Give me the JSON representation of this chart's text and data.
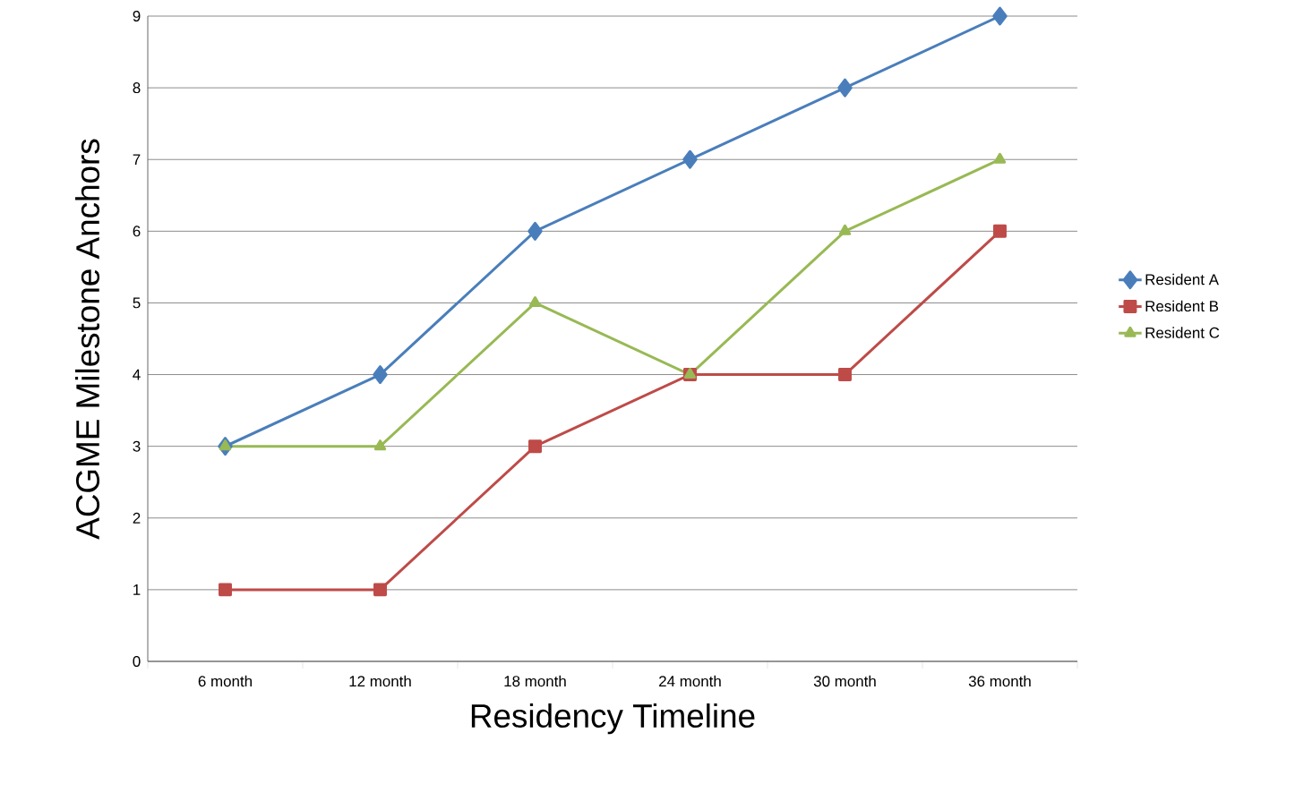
{
  "chart_data": {
    "type": "line",
    "xlabel": "Residency Timeline",
    "ylabel": "ACGME Milestone Anchors",
    "categories": [
      "6 month",
      "12 month",
      "18 month",
      "24 month",
      "30 month",
      "36 month"
    ],
    "series": [
      {
        "name": "Resident A",
        "color": "#4a7ebb",
        "marker": "diamond",
        "values": [
          3,
          4,
          6,
          7,
          8,
          9
        ]
      },
      {
        "name": "Resident B",
        "color": "#be4b48",
        "marker": "square",
        "values": [
          1,
          1,
          3,
          4,
          4,
          6
        ]
      },
      {
        "name": "Resident C",
        "color": "#98b954",
        "marker": "triangle",
        "values": [
          3,
          3,
          5,
          4,
          6,
          7
        ]
      }
    ],
    "ylim": [
      0,
      9
    ],
    "yticks": [
      0,
      1,
      2,
      3,
      4,
      5,
      6,
      7,
      8,
      9
    ],
    "grid": "y",
    "legend": "right",
    "line_style": "solid"
  }
}
